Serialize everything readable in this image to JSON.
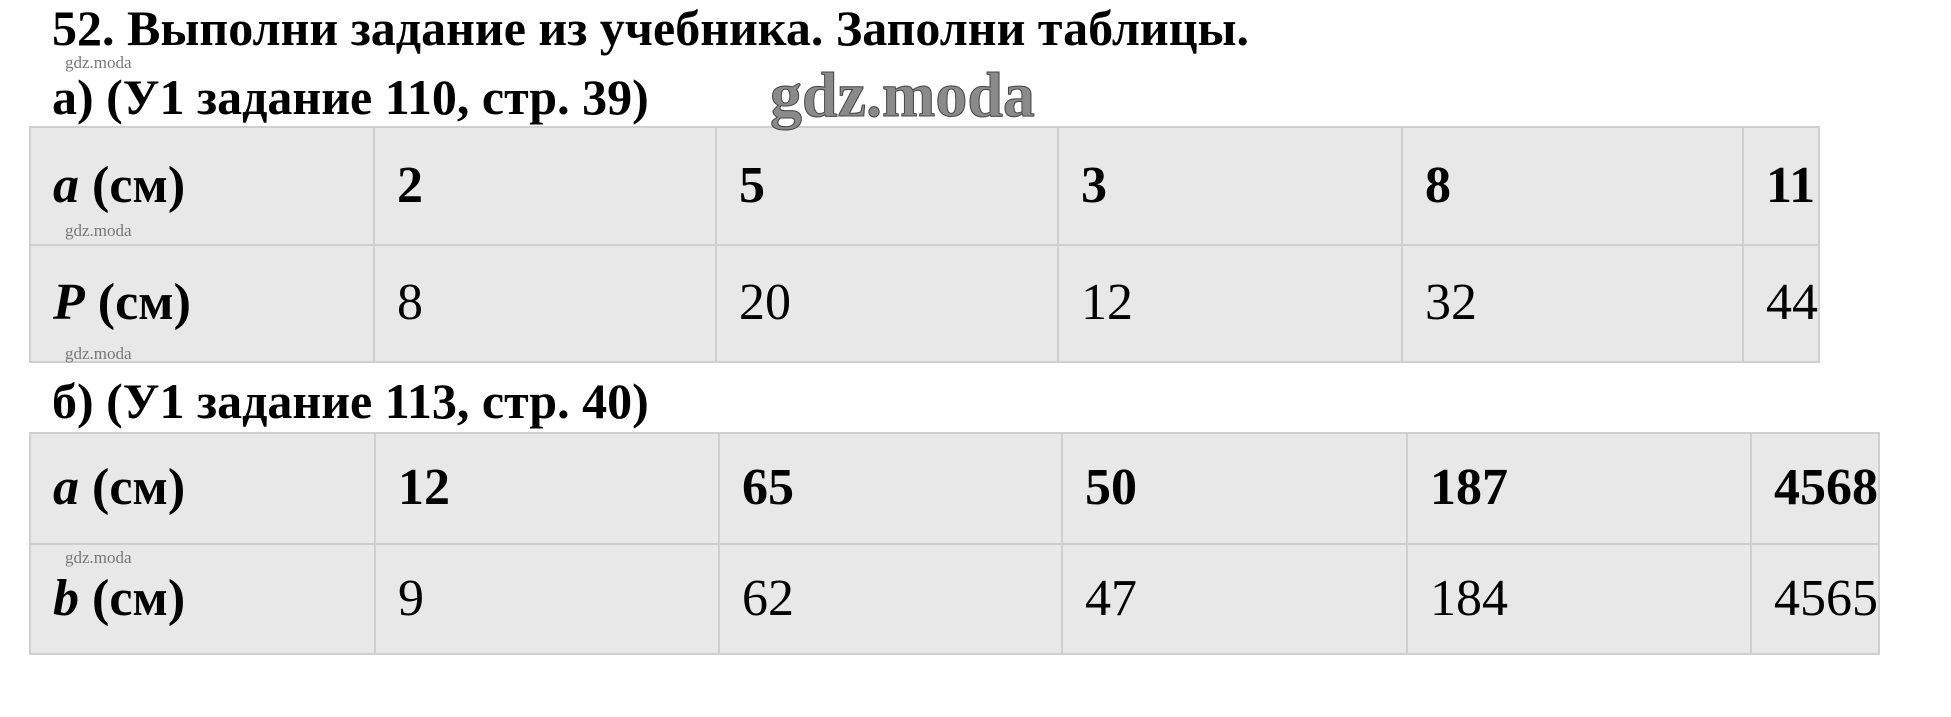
{
  "title": "52. Выполни задание из учебника. Заполни таблицы.",
  "watermark": "gdz.moda",
  "section_a": {
    "heading": "а) (У1 задание 110, стр. 39)",
    "rows": [
      {
        "var": "a",
        "unit": " (см)",
        "values": [
          "2",
          "5",
          "3",
          "8",
          "11"
        ]
      },
      {
        "var": "P",
        "unit": " (см)",
        "values": [
          "8",
          "20",
          "12",
          "32",
          "44"
        ]
      }
    ]
  },
  "section_b": {
    "heading": "б) (У1 задание 113, стр. 40)",
    "rows": [
      {
        "var": "a",
        "unit": " (см)",
        "values": [
          "12",
          "65",
          "50",
          "187",
          "4568"
        ]
      },
      {
        "var": "b",
        "unit": " (см)",
        "values": [
          "9",
          "62",
          "47",
          "184",
          "4565"
        ]
      }
    ]
  }
}
